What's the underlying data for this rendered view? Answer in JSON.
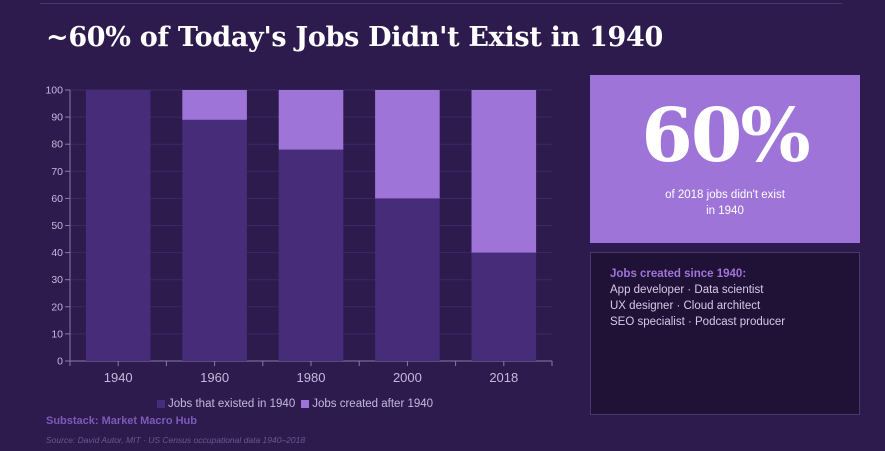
{
  "title": "~60% of Today's Jobs Didn't Exist in 1940",
  "colors": {
    "existed": "#472c7a",
    "created": "#9e74d8",
    "background": "#2d1b4e"
  },
  "chart_data": {
    "type": "bar",
    "stacked": true,
    "categories": [
      "1940",
      "1960",
      "1980",
      "2000",
      "2018"
    ],
    "series": [
      {
        "name": "Jobs that existed in 1940",
        "values": [
          100,
          89,
          78,
          60,
          40
        ]
      },
      {
        "name": "Jobs created after 1940",
        "values": [
          0,
          11,
          22,
          40,
          60
        ]
      }
    ],
    "ylim": [
      0,
      100
    ],
    "yticks": [
      0,
      10,
      20,
      30,
      40,
      50,
      60,
      70,
      80,
      90,
      100
    ],
    "grid": true,
    "legend_position": "bottom"
  },
  "stat": {
    "value": "60%",
    "caption": "of 2018 jobs didn't exist in 1940"
  },
  "jobs_panel": {
    "heading": "Jobs created since 1940:",
    "lines": [
      "App developer · Data scientist",
      "UX designer · Cloud architect",
      "SEO specialist · Podcast producer"
    ]
  },
  "credit": "Substack: Market Macro Hub",
  "source": "Source: David Autor, MIT · US Census occupational data 1940–2018"
}
